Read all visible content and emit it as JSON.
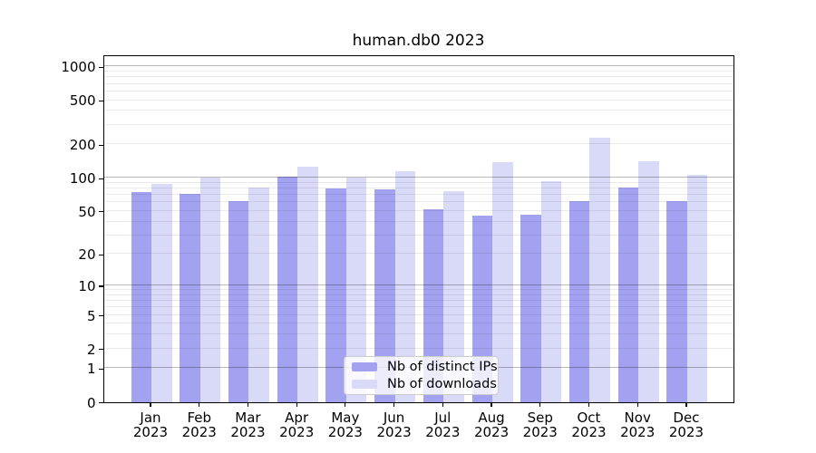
{
  "title": "human.db0 2023",
  "chart_data": {
    "type": "bar",
    "title": "human.db0 2023",
    "yscale": "log10(1+y)",
    "grid": true,
    "categories": [
      "Jan",
      "Feb",
      "Mar",
      "Apr",
      "May",
      "Jun",
      "Jul",
      "Aug",
      "Sep",
      "Oct",
      "Nov",
      "Dec"
    ],
    "x_tick_label_year": "2023",
    "series": [
      {
        "name": "Nb of distinct IPs",
        "color": "#a2a2f0",
        "values": [
          74,
          72,
          62,
          103,
          80,
          78,
          52,
          45,
          46,
          62,
          81,
          62
        ]
      },
      {
        "name": "Nb of downloads",
        "color": "#d9d9f8",
        "values": [
          88,
          100,
          82,
          126,
          101,
          115,
          76,
          138,
          93,
          230,
          142,
          107
        ]
      }
    ],
    "y_tick_values": [
      0,
      1,
      2,
      5,
      10,
      20,
      50,
      100,
      200,
      500,
      1000
    ],
    "y_major_gridlines": [
      1,
      10,
      100,
      1000
    ],
    "ylim": [
      0,
      1290
    ],
    "legend": {
      "location": "lower center",
      "entries": [
        "Nb of distinct IPs",
        "Nb of downloads"
      ]
    }
  },
  "colors": {
    "background": "#ffffff",
    "spine": "#000000",
    "bar_distinct_ips": "#a2a2f0",
    "bar_downloads": "#d9d9f8",
    "major_grid": "rgba(0,0,0,0.28)",
    "minor_grid": "rgba(0,0,0,0.08)",
    "legend_border": "#cccccc"
  }
}
